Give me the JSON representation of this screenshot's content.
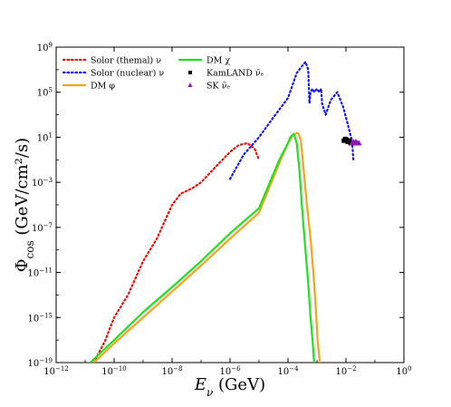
{
  "chart_data": {
    "type": "line",
    "title": "",
    "xlabel": "E_ν (GeV)",
    "ylabel": "Φ_cos (GeV/cm²/s)",
    "xscale": "log",
    "yscale": "log",
    "xlim": [
      1e-12,
      1
    ],
    "ylim": [
      1e-19,
      1000000000.0
    ],
    "x_tick_exponents": [
      -12,
      -10,
      -8,
      -6,
      -4,
      -2,
      0
    ],
    "y_tick_exponents": [
      -19,
      -15,
      -11,
      -7,
      -3,
      1,
      5,
      9
    ],
    "legend_position": "top-left",
    "grid": false,
    "series": [
      {
        "name": "Solor (themal) ν",
        "style": "dotted",
        "color": "#e8120c",
        "x": [
          2e-11,
          5e-11,
          1e-10,
          3e-10,
          1e-09,
          3e-09,
          1e-08,
          2e-08,
          5e-08,
          1e-07,
          3e-07,
          1e-06,
          2e-06,
          4e-06,
          7e-06,
          1e-05
        ],
        "y": [
          1e-19,
          1e-17,
          1e-15,
          1e-13,
          1e-10,
          1e-08,
          1e-05,
          0.0001,
          0.0003,
          0.001,
          0.02,
          0.5,
          2,
          3,
          1,
          0.1
        ]
      },
      {
        "name": "Solor (nuclear) ν",
        "style": "dotted",
        "color": "#1515e8",
        "x": [
          1e-06,
          3e-06,
          1e-05,
          3e-05,
          0.0001,
          0.0002,
          0.0004,
          0.0005,
          0.00055,
          0.0006,
          0.0007,
          0.0008,
          0.001,
          0.0012,
          0.0014,
          0.0015,
          0.002,
          0.003,
          0.005,
          0.008,
          0.012,
          0.015,
          0.016,
          0.017,
          0.018
        ],
        "y": [
          0.002,
          0.3,
          10,
          500,
          30000.0,
          5000000.0,
          50000000.0,
          10000000.0,
          10000.0,
          100000.0,
          200000.0,
          100000.0,
          200000.0,
          100000.0,
          200000.0,
          10000.0,
          1000.0,
          20000.0,
          100000.0,
          5000.0,
          100.0,
          10,
          5,
          1,
          0.1
        ]
      },
      {
        "name": "DM φ",
        "style": "solid",
        "color": "#f5a31a",
        "x": [
          2e-11,
          1e-10,
          1e-09,
          1e-08,
          1e-07,
          1e-06,
          1e-05,
          5e-05,
          0.0001,
          0.00015,
          0.00018,
          0.0002,
          0.00023,
          0.00028,
          0.00035,
          0.00045,
          0.0006,
          0.00075,
          0.00085,
          0.00095,
          0.00105,
          0.00115,
          0.00125
        ],
        "y": [
          1e-19,
          5e-18,
          1e-15,
          2e-13,
          4e-11,
          1e-08,
          2e-06,
          0.05,
          3,
          15,
          20,
          25,
          20,
          5,
          0.01,
          1e-05,
          1e-08,
          1e-11,
          1e-13,
          1e-15,
          1e-17,
          1e-18,
          1e-19
        ]
      },
      {
        "name": "DM χ",
        "style": "solid",
        "color": "#22e022",
        "x": [
          1.5e-11,
          1e-10,
          1e-09,
          1e-08,
          1e-07,
          1e-06,
          1e-05,
          5e-05,
          0.0001,
          0.00012,
          0.00014,
          0.00016,
          0.0002,
          0.00025,
          0.0003,
          0.0004,
          0.0005,
          0.0006,
          0.0007,
          0.00075,
          0.0008
        ],
        "y": [
          1e-19,
          1e-17,
          3e-15,
          5e-13,
          1e-10,
          3e-08,
          5e-06,
          0.1,
          3,
          10,
          15,
          20,
          3,
          0.01,
          1e-05,
          1e-09,
          1e-12,
          1e-15,
          1e-17,
          1e-18,
          1e-19
        ]
      },
      {
        "name": "KamLAND ν̄ₑ",
        "style": "markers-square",
        "color": "#000000",
        "x": [
          0.0085,
          0.0095,
          0.0105,
          0.0115,
          0.013,
          0.0145
        ],
        "y": [
          5,
          7,
          6,
          4,
          5,
          3
        ]
      },
      {
        "name": "SK ν̄ₑ",
        "style": "markers-triangle",
        "color": "#8a1aa8",
        "x": [
          0.016,
          0.018,
          0.02,
          0.022,
          0.025,
          0.028
        ],
        "y": [
          3,
          4,
          3,
          4,
          3,
          3
        ]
      }
    ]
  },
  "legend": [
    {
      "text": "Solor (themal) ν",
      "marker": "dotted",
      "color": "#e8120c"
    },
    {
      "text": "Solor (nuclear) ν",
      "marker": "dotted",
      "color": "#1515e8"
    },
    {
      "text": "DM φ",
      "marker": "solid",
      "color": "#f5a31a"
    },
    {
      "text": "DM χ",
      "marker": "solid",
      "color": "#22e022"
    },
    {
      "text": "KamLAND ν̄ₑ",
      "marker": "square",
      "color": "#000000"
    },
    {
      "text": "SK ν̄ₑ",
      "marker": "triangle",
      "color": "#8a1aa8"
    }
  ],
  "axis_labels": {
    "x_main": "E",
    "x_sub": "ν",
    "x_unit": " (GeV)",
    "y_main": "Φ",
    "y_sub": "cos",
    "y_unit": " (GeV/cm²/s)"
  }
}
